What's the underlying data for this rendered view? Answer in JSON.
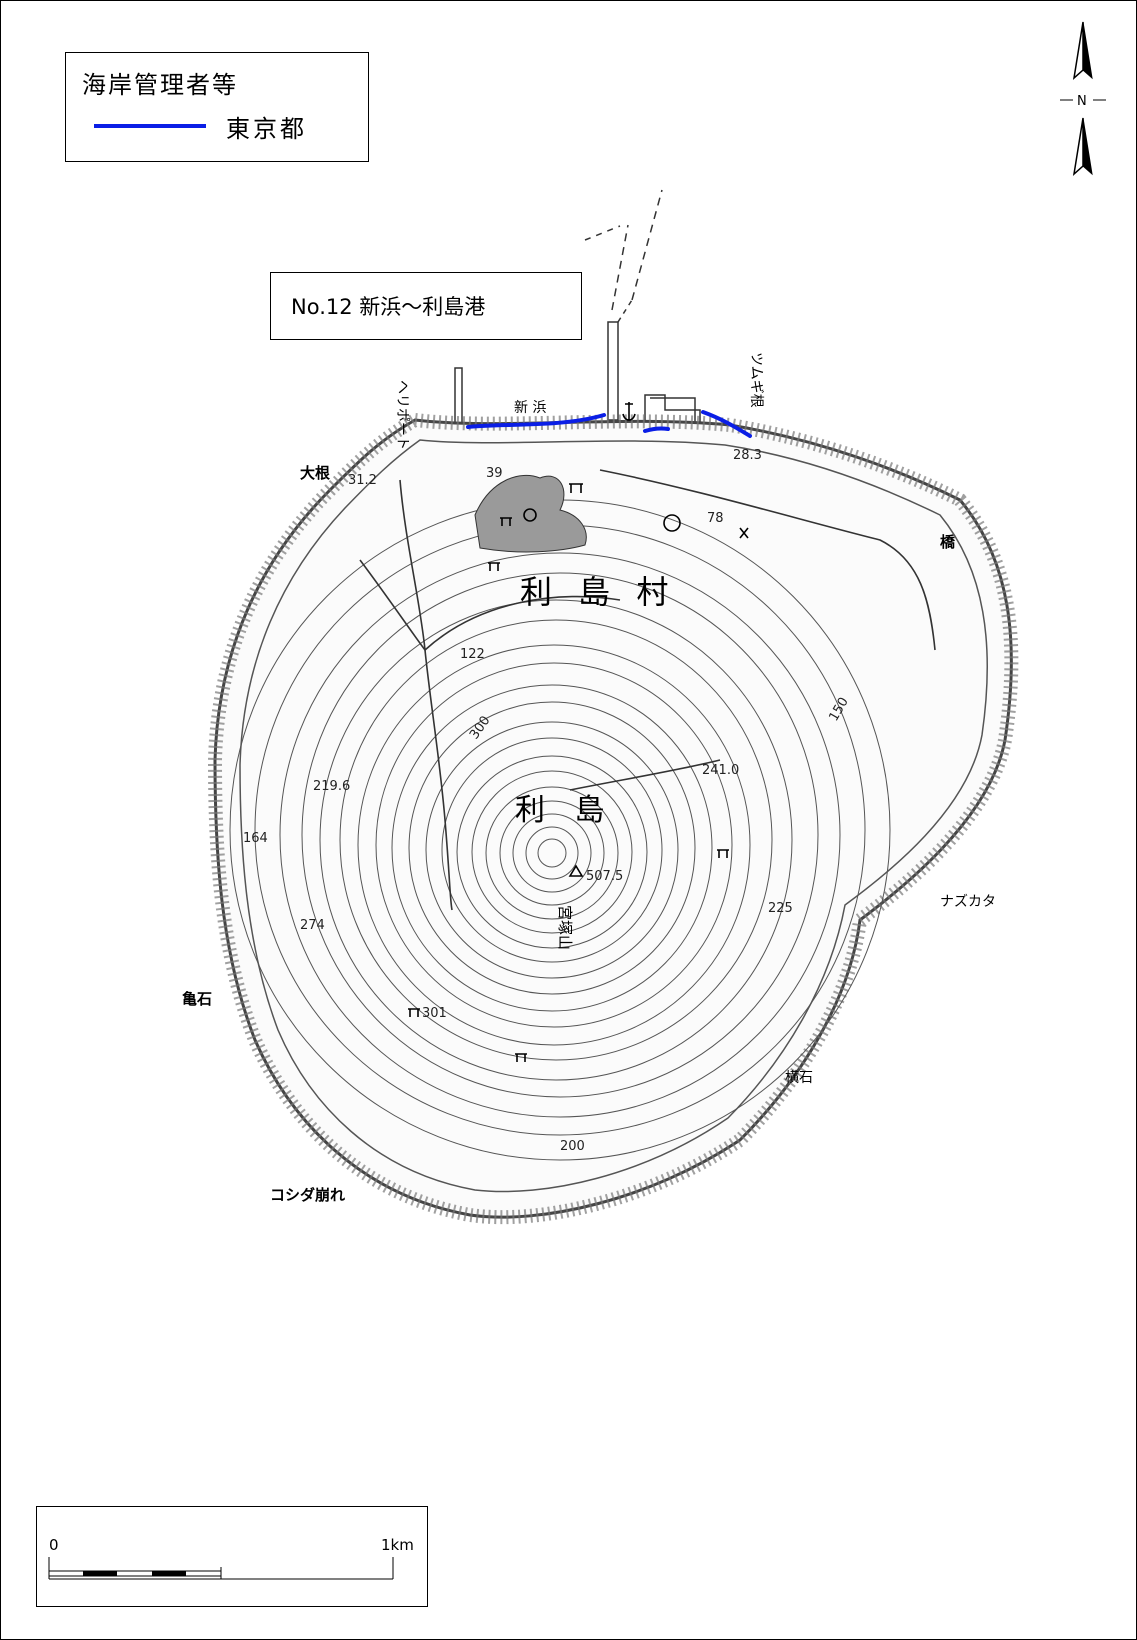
{
  "legend": {
    "title": "海岸管理者等",
    "items": [
      {
        "label": "東京都",
        "color": "#0a1ee6"
      }
    ]
  },
  "section": {
    "label": "No.12 新浜〜利島港"
  },
  "compass": {
    "north_label": "N"
  },
  "map": {
    "island_name": "利 島",
    "village_name": "利 島 村",
    "peak_name": "宮塚山",
    "peak_elevation": "507.5",
    "places": {
      "heliport": "ヘリポート",
      "shinhama": "新 浜",
      "tsumugi_ne": "ツムギ根",
      "one": "大根",
      "hashi": "橋",
      "nazukata": "ナズカタ",
      "kameishi": "亀石",
      "yokoishi": "横石",
      "koshida": "コシダ崩れ"
    },
    "elevations": {
      "e312": "31.2",
      "e39": "39",
      "e283": "28.3",
      "e78": "78",
      "e122": "122",
      "e150": "150",
      "e2410": "241.0",
      "e2196": "219.6",
      "e164": "164",
      "e274": "274",
      "e225": "225",
      "e301": "301",
      "e300": "300",
      "e200": "200"
    }
  },
  "scale": {
    "start_label": "0",
    "end_label": "1km"
  }
}
